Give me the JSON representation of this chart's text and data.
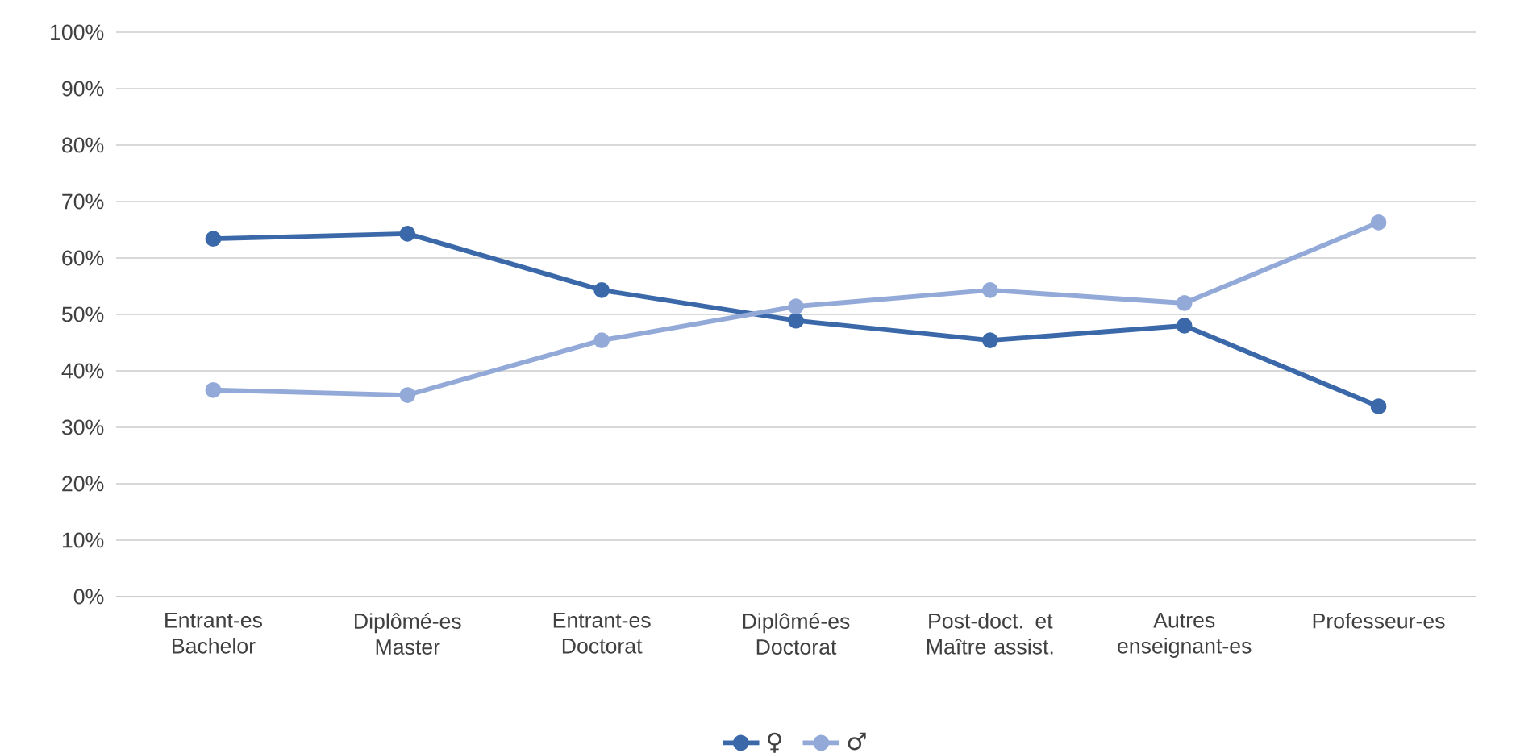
{
  "chart_data": {
    "type": "line",
    "categories": [
      "Entrant-es Bachelor",
      "Diplômé-es Master",
      "Entrant-es Doctorat",
      "Diplômé-es Doctorat",
      "Post-doct. et Maître assist.",
      "Autres enseignant-es",
      "Professeur-es"
    ],
    "series": [
      {
        "name": "♀",
        "color": "#3b68a9",
        "values": [
          63.4,
          64.3,
          54.3,
          48.9,
          45.4,
          48.0,
          33.7
        ]
      },
      {
        "name": "♂",
        "color": "#93aad9",
        "values": [
          36.6,
          35.7,
          45.4,
          51.4,
          54.3,
          52.0,
          66.3
        ]
      }
    ],
    "ylim": [
      0,
      100
    ],
    "yticks": [
      {
        "value": 0,
        "label": "0%"
      },
      {
        "value": 10,
        "label": "10%"
      },
      {
        "value": 20,
        "label": "20%"
      },
      {
        "value": 30,
        "label": "30%"
      },
      {
        "value": 40,
        "label": "40%"
      },
      {
        "value": 50,
        "label": "50%"
      },
      {
        "value": 60,
        "label": "60%"
      },
      {
        "value": 70,
        "label": "70%"
      },
      {
        "value": 80,
        "label": "80%"
      },
      {
        "value": 90,
        "label": "90%"
      },
      {
        "value": 100,
        "label": "100%"
      }
    ],
    "grid": "y",
    "legend": "bottom",
    "marker": "circle",
    "line_style": "solid"
  }
}
